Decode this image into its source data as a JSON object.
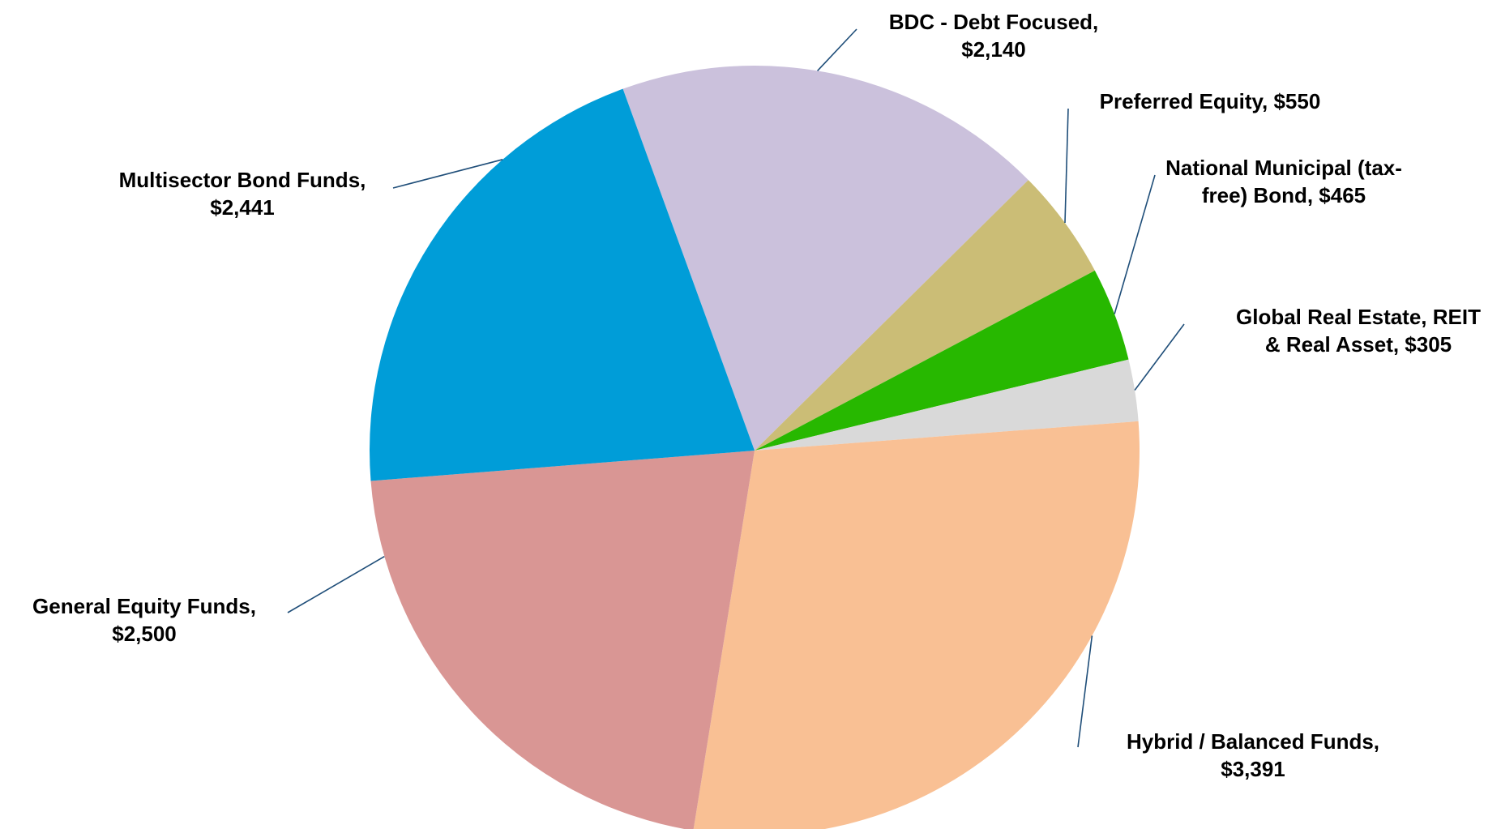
{
  "chart_data": {
    "type": "pie",
    "title": "",
    "series": [
      {
        "label": "BDC - Debt Focused,",
        "value_text": "$2,140",
        "value": 2140,
        "color": "#cbc1dc"
      },
      {
        "label": "Preferred Equity, $550",
        "value_text": "",
        "value": 550,
        "color": "#cbbd76"
      },
      {
        "label": "National Municipal (tax-",
        "value_text": "free) Bond, $465",
        "value": 465,
        "color": "#27b800"
      },
      {
        "label": "Global Real Estate, REIT",
        "value_text": "& Real Asset, $305",
        "value": 305,
        "color": "#d9d9d9"
      },
      {
        "label": "Hybrid / Balanced Funds,",
        "value_text": "$3,391",
        "value": 3391,
        "color": "#f9c094"
      },
      {
        "label": "General Equity Funds,",
        "value_text": "$2,500",
        "value": 2500,
        "color": "#d99694"
      },
      {
        "label": "Multisector Bond Funds,",
        "value_text": "$2,441",
        "value": 2441,
        "color": "#009dd8"
      }
    ],
    "legend": "none",
    "data_labels": "outside with leader lines"
  }
}
